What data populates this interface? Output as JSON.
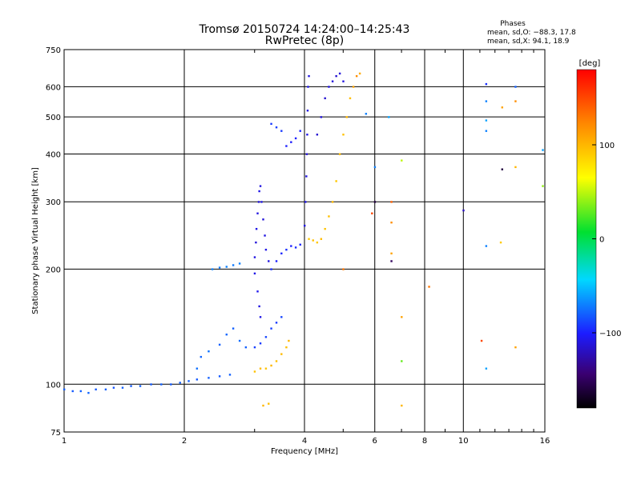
{
  "header": {
    "title_line1": "Tromsø 20150724 14:24:00–14:25:43",
    "title_line2": "RwPretec (8p)"
  },
  "stats": {
    "heading": "Phases",
    "o_line": "mean, sd,O: −88.3, 17.8",
    "x_line": "mean, sd,X:  94.1, 18.9"
  },
  "colorbar": {
    "label": "[deg]",
    "ticks": [
      {
        "value": 100,
        "text": "100"
      },
      {
        "value": 0,
        "text": "0"
      },
      {
        "value": -100,
        "text": "−100"
      }
    ],
    "range": [
      -180,
      180
    ]
  },
  "chart_data": {
    "type": "scatter",
    "xlabel": "Frequency [MHz]",
    "ylabel": "Stationary phase Virtual Height [km]",
    "x_scale": "log",
    "y_scale": "log",
    "xlim": [
      1,
      16
    ],
    "ylim": [
      75,
      750
    ],
    "x_ticks": [
      {
        "value": 1,
        "text": "1"
      },
      {
        "value": 2,
        "text": "2"
      },
      {
        "value": 4,
        "text": "4"
      },
      {
        "value": 6,
        "text": "6"
      },
      {
        "value": 8,
        "text": "8"
      },
      {
        "value": 10,
        "text": "10"
      },
      {
        "value": 16,
        "text": "16"
      }
    ],
    "y_ticks": [
      {
        "value": 75,
        "text": "75"
      },
      {
        "value": 100,
        "text": "100"
      },
      {
        "value": 200,
        "text": "200"
      },
      {
        "value": 300,
        "text": "300"
      },
      {
        "value": 400,
        "text": "400"
      },
      {
        "value": 500,
        "text": "500"
      },
      {
        "value": 600,
        "text": "600"
      },
      {
        "value": 750,
        "text": "750"
      }
    ],
    "grid": true,
    "points": [
      {
        "x": 1.0,
        "y": 97,
        "phase": -80
      },
      {
        "x": 1.05,
        "y": 96,
        "phase": -82
      },
      {
        "x": 1.1,
        "y": 96,
        "phase": -80
      },
      {
        "x": 1.15,
        "y": 95,
        "phase": -78
      },
      {
        "x": 1.2,
        "y": 97,
        "phase": -82
      },
      {
        "x": 1.27,
        "y": 97,
        "phase": -80
      },
      {
        "x": 1.33,
        "y": 98,
        "phase": -84
      },
      {
        "x": 1.4,
        "y": 98,
        "phase": -80
      },
      {
        "x": 1.47,
        "y": 99,
        "phase": -82
      },
      {
        "x": 1.55,
        "y": 99,
        "phase": -80
      },
      {
        "x": 1.65,
        "y": 100,
        "phase": -82
      },
      {
        "x": 1.75,
        "y": 100,
        "phase": -80
      },
      {
        "x": 1.85,
        "y": 100,
        "phase": -82
      },
      {
        "x": 1.95,
        "y": 101,
        "phase": -80
      },
      {
        "x": 2.05,
        "y": 102,
        "phase": -80
      },
      {
        "x": 2.15,
        "y": 103,
        "phase": -82
      },
      {
        "x": 2.3,
        "y": 104,
        "phase": -80
      },
      {
        "x": 2.45,
        "y": 105,
        "phase": -82
      },
      {
        "x": 2.6,
        "y": 106,
        "phase": -80
      },
      {
        "x": 2.15,
        "y": 110,
        "phase": -75
      },
      {
        "x": 2.2,
        "y": 118,
        "phase": -78
      },
      {
        "x": 2.3,
        "y": 122,
        "phase": -74
      },
      {
        "x": 2.45,
        "y": 127,
        "phase": -80
      },
      {
        "x": 2.55,
        "y": 135,
        "phase": -78
      },
      {
        "x": 2.65,
        "y": 140,
        "phase": -80
      },
      {
        "x": 2.75,
        "y": 130,
        "phase": -76
      },
      {
        "x": 2.85,
        "y": 125,
        "phase": -80
      },
      {
        "x": 2.35,
        "y": 200,
        "phase": -70
      },
      {
        "x": 2.45,
        "y": 202,
        "phase": -72
      },
      {
        "x": 2.55,
        "y": 203,
        "phase": -70
      },
      {
        "x": 2.65,
        "y": 205,
        "phase": -72
      },
      {
        "x": 2.75,
        "y": 207,
        "phase": -70
      },
      {
        "x": 3.0,
        "y": 195,
        "phase": -108
      },
      {
        "x": 3.0,
        "y": 215,
        "phase": -110
      },
      {
        "x": 3.02,
        "y": 235,
        "phase": -112
      },
      {
        "x": 3.03,
        "y": 255,
        "phase": -108
      },
      {
        "x": 3.05,
        "y": 280,
        "phase": -110
      },
      {
        "x": 3.07,
        "y": 300,
        "phase": -112
      },
      {
        "x": 3.08,
        "y": 320,
        "phase": -108
      },
      {
        "x": 3.1,
        "y": 330,
        "phase": -110
      },
      {
        "x": 3.12,
        "y": 300,
        "phase": -108
      },
      {
        "x": 3.15,
        "y": 270,
        "phase": -112
      },
      {
        "x": 3.18,
        "y": 245,
        "phase": -110
      },
      {
        "x": 3.2,
        "y": 225,
        "phase": -108
      },
      {
        "x": 3.25,
        "y": 210,
        "phase": -110
      },
      {
        "x": 3.05,
        "y": 175,
        "phase": -106
      },
      {
        "x": 3.08,
        "y": 160,
        "phase": -110
      },
      {
        "x": 3.1,
        "y": 150,
        "phase": -108
      },
      {
        "x": 3.3,
        "y": 200,
        "phase": -95
      },
      {
        "x": 3.4,
        "y": 210,
        "phase": -100
      },
      {
        "x": 3.5,
        "y": 220,
        "phase": -98
      },
      {
        "x": 3.6,
        "y": 225,
        "phase": -95
      },
      {
        "x": 3.7,
        "y": 230,
        "phase": -100
      },
      {
        "x": 3.8,
        "y": 228,
        "phase": -96
      },
      {
        "x": 3.9,
        "y": 232,
        "phase": -98
      },
      {
        "x": 3.0,
        "y": 125,
        "phase": -90
      },
      {
        "x": 3.1,
        "y": 128,
        "phase": -92
      },
      {
        "x": 3.2,
        "y": 133,
        "phase": -88
      },
      {
        "x": 3.3,
        "y": 140,
        "phase": -90
      },
      {
        "x": 3.4,
        "y": 145,
        "phase": -92
      },
      {
        "x": 3.5,
        "y": 150,
        "phase": -88
      },
      {
        "x": 3.6,
        "y": 420,
        "phase": -100
      },
      {
        "x": 3.7,
        "y": 430,
        "phase": -102
      },
      {
        "x": 3.8,
        "y": 440,
        "phase": -100
      },
      {
        "x": 3.9,
        "y": 460,
        "phase": -98
      },
      {
        "x": 3.3,
        "y": 480,
        "phase": -92
      },
      {
        "x": 3.4,
        "y": 470,
        "phase": -90
      },
      {
        "x": 3.5,
        "y": 460,
        "phase": -92
      },
      {
        "x": 4.0,
        "y": 260,
        "phase": -110
      },
      {
        "x": 4.02,
        "y": 300,
        "phase": -108
      },
      {
        "x": 4.04,
        "y": 350,
        "phase": -110
      },
      {
        "x": 4.05,
        "y": 400,
        "phase": -112
      },
      {
        "x": 4.06,
        "y": 450,
        "phase": -108
      },
      {
        "x": 4.07,
        "y": 520,
        "phase": -110
      },
      {
        "x": 4.08,
        "y": 600,
        "phase": -108
      },
      {
        "x": 4.1,
        "y": 640,
        "phase": -110
      },
      {
        "x": 4.3,
        "y": 450,
        "phase": -115
      },
      {
        "x": 4.4,
        "y": 500,
        "phase": -112
      },
      {
        "x": 4.5,
        "y": 560,
        "phase": -115
      },
      {
        "x": 4.6,
        "y": 600,
        "phase": -110
      },
      {
        "x": 4.7,
        "y": 620,
        "phase": -112
      },
      {
        "x": 4.8,
        "y": 640,
        "phase": -115
      },
      {
        "x": 4.9,
        "y": 650,
        "phase": -112
      },
      {
        "x": 5.0,
        "y": 620,
        "phase": -110
      },
      {
        "x": 4.1,
        "y": 240,
        "phase": 90
      },
      {
        "x": 4.2,
        "y": 238,
        "phase": 95
      },
      {
        "x": 4.3,
        "y": 235,
        "phase": 92
      },
      {
        "x": 4.4,
        "y": 240,
        "phase": 98
      },
      {
        "x": 4.5,
        "y": 255,
        "phase": 94
      },
      {
        "x": 4.6,
        "y": 275,
        "phase": 96
      },
      {
        "x": 4.7,
        "y": 300,
        "phase": 100
      },
      {
        "x": 4.8,
        "y": 340,
        "phase": 92
      },
      {
        "x": 4.9,
        "y": 400,
        "phase": 98
      },
      {
        "x": 5.0,
        "y": 450,
        "phase": 95
      },
      {
        "x": 5.1,
        "y": 500,
        "phase": 100
      },
      {
        "x": 5.2,
        "y": 560,
        "phase": 96
      },
      {
        "x": 5.3,
        "y": 600,
        "phase": 110
      },
      {
        "x": 5.4,
        "y": 640,
        "phase": 120
      },
      {
        "x": 5.5,
        "y": 650,
        "phase": 105
      },
      {
        "x": 3.0,
        "y": 108,
        "phase": 95
      },
      {
        "x": 3.1,
        "y": 110,
        "phase": 98
      },
      {
        "x": 3.2,
        "y": 110,
        "phase": 94
      },
      {
        "x": 3.3,
        "y": 112,
        "phase": 100
      },
      {
        "x": 3.4,
        "y": 115,
        "phase": 96
      },
      {
        "x": 3.5,
        "y": 120,
        "phase": 98
      },
      {
        "x": 3.6,
        "y": 125,
        "phase": 96
      },
      {
        "x": 3.65,
        "y": 130,
        "phase": 100
      },
      {
        "x": 3.15,
        "y": 88,
        "phase": 100
      },
      {
        "x": 3.25,
        "y": 89,
        "phase": 96
      },
      {
        "x": 6.5,
        "y": 500,
        "phase": -60
      },
      {
        "x": 6.6,
        "y": 300,
        "phase": 140
      },
      {
        "x": 6.6,
        "y": 265,
        "phase": 120
      },
      {
        "x": 6.6,
        "y": 220,
        "phase": 110
      },
      {
        "x": 6.6,
        "y": 210,
        "phase": -150
      },
      {
        "x": 7.0,
        "y": 385,
        "phase": 50
      },
      {
        "x": 7.0,
        "y": 150,
        "phase": 110
      },
      {
        "x": 7.0,
        "y": 115,
        "phase": 30
      },
      {
        "x": 7.0,
        "y": 88,
        "phase": 100
      },
      {
        "x": 8.2,
        "y": 180,
        "phase": 130
      },
      {
        "x": 6.0,
        "y": 370,
        "phase": -70
      },
      {
        "x": 6.0,
        "y": 300,
        "phase": -160
      },
      {
        "x": 5.7,
        "y": 510,
        "phase": -70
      },
      {
        "x": 5.9,
        "y": 280,
        "phase": 150
      },
      {
        "x": 5.0,
        "y": 200,
        "phase": 130
      },
      {
        "x": 10.0,
        "y": 285,
        "phase": -120
      },
      {
        "x": 11.4,
        "y": 610,
        "phase": -95
      },
      {
        "x": 11.4,
        "y": 550,
        "phase": -70
      },
      {
        "x": 11.4,
        "y": 490,
        "phase": -60
      },
      {
        "x": 11.4,
        "y": 460,
        "phase": -70
      },
      {
        "x": 11.4,
        "y": 230,
        "phase": -70
      },
      {
        "x": 11.1,
        "y": 130,
        "phase": 150
      },
      {
        "x": 11.4,
        "y": 110,
        "phase": -60
      },
      {
        "x": 12.5,
        "y": 530,
        "phase": 110
      },
      {
        "x": 12.5,
        "y": 365,
        "phase": -160
      },
      {
        "x": 12.4,
        "y": 235,
        "phase": 90
      },
      {
        "x": 13.5,
        "y": 600,
        "phase": -80
      },
      {
        "x": 13.5,
        "y": 550,
        "phase": 120
      },
      {
        "x": 13.5,
        "y": 370,
        "phase": 100
      },
      {
        "x": 13.5,
        "y": 125,
        "phase": 110
      },
      {
        "x": 15.8,
        "y": 410,
        "phase": -60
      },
      {
        "x": 15.8,
        "y": 330,
        "phase": 40
      }
    ]
  }
}
